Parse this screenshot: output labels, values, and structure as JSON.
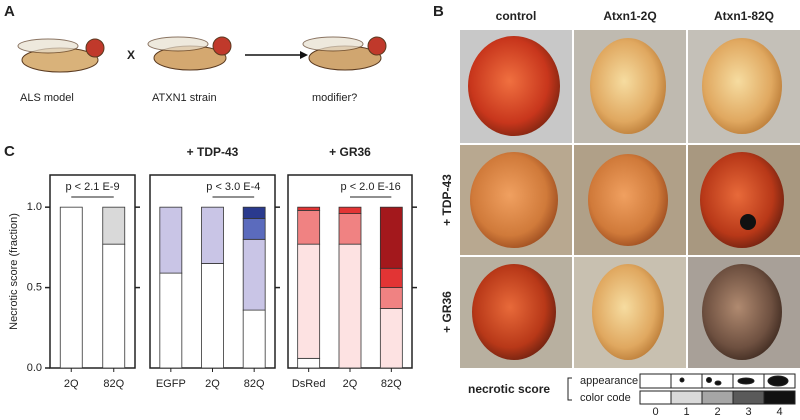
{
  "panel_a": {
    "letter": "A",
    "left_label": "ALS model",
    "cross": "X",
    "middle_label": "ATXN1 strain",
    "right_label": "modifier?"
  },
  "panel_b": {
    "letter": "B",
    "columns": [
      "control",
      "Atxn1-2Q",
      "Atxn1-82Q"
    ],
    "rows": [
      "+ TDP-43",
      "+ GR36"
    ],
    "legend": {
      "title": "necrotic score",
      "appearance": "appearance",
      "color_code": "color code",
      "scores": [
        "0",
        "1",
        "2",
        "3",
        "4"
      ]
    }
  },
  "panel_c": {
    "letter": "C"
  },
  "chart_data": [
    {
      "type": "bar",
      "stacked": true,
      "y_label": "Necrotic score (fraction)",
      "annotation": "p < 2.1 E-9",
      "categories": [
        "2Q",
        "82Q"
      ],
      "ylim": [
        0,
        1.2
      ],
      "yticks": [
        {
          "value": 0,
          "label": "0.0"
        },
        {
          "value": 0.5,
          "label": "0.5"
        },
        {
          "value": 1,
          "label": "1.0"
        }
      ],
      "series": [
        {
          "color": "#ffffff",
          "values": [
            1.0,
            0.77
          ]
        },
        {
          "color": "#d9d9d9",
          "values": [
            0,
            0.23
          ]
        }
      ]
    },
    {
      "type": "bar",
      "stacked": true,
      "title": "+ TDP-43",
      "annotation": "p < 3.0 E-4",
      "categories": [
        "EGFP",
        "2Q",
        "82Q"
      ],
      "ylim": [
        0,
        1.2
      ],
      "series": [
        {
          "color": "#ffffff",
          "values": [
            0.59,
            0.65,
            0.36
          ]
        },
        {
          "color": "#c9c5e6",
          "values": [
            0.41,
            0.35,
            0.44
          ]
        },
        {
          "color": "#5b6bbd",
          "values": [
            0,
            0,
            0.13
          ]
        },
        {
          "color": "#2a3a8e",
          "values": [
            0,
            0,
            0.07
          ]
        }
      ]
    },
    {
      "type": "bar",
      "stacked": true,
      "title": "+ GR36",
      "annotation": "p < 2.0 E-16",
      "categories": [
        "DsRed",
        "2Q",
        "82Q"
      ],
      "ylim": [
        0,
        1.2
      ],
      "series": [
        {
          "color": "#ffffff",
          "values": [
            0.06,
            0,
            0
          ]
        },
        {
          "color": "#fde2e2",
          "values": [
            0.71,
            0.77,
            0.37
          ]
        },
        {
          "color": "#f08282",
          "values": [
            0.21,
            0.19,
            0.13
          ]
        },
        {
          "color": "#e23434",
          "values": [
            0.02,
            0.04,
            0.12
          ]
        },
        {
          "color": "#a3181c",
          "values": [
            0,
            0,
            0.38
          ]
        }
      ]
    }
  ]
}
